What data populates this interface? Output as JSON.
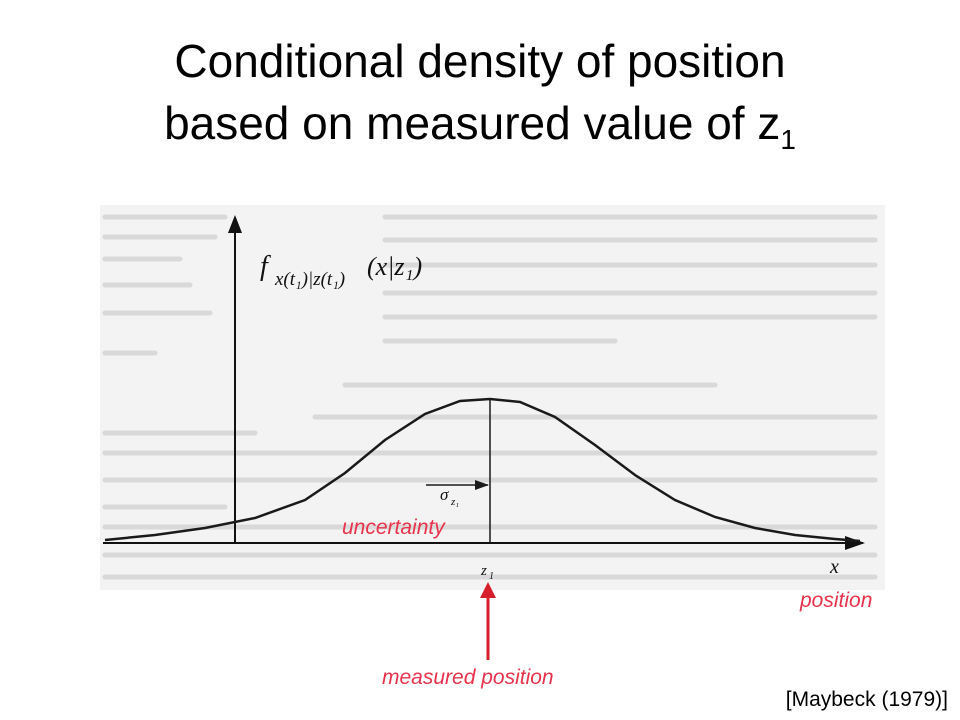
{
  "title": {
    "line1": "Conditional density of position",
    "line2_main": "based on measured value of z",
    "line2_sub": "1"
  },
  "figure": {
    "ylabel_main": "f",
    "ylabel_sub": "x(t₁)|z(t₁)",
    "ylabel_args": "(x|z₁)",
    "sigma_main": "σ",
    "sigma_sub": "z₁",
    "x_axis_label": "x",
    "z_tick_main": "z",
    "z_tick_sub": "1"
  },
  "annotations": {
    "uncertainty": "uncertainty",
    "position": "position",
    "measured_position": "measured position"
  },
  "source": "[Maybeck (1979)]",
  "colors": {
    "annotation": "#e8324b",
    "arrow": "#d81e2c",
    "scan_background": "#f2f2f2",
    "ink": "#1a1a1a"
  }
}
